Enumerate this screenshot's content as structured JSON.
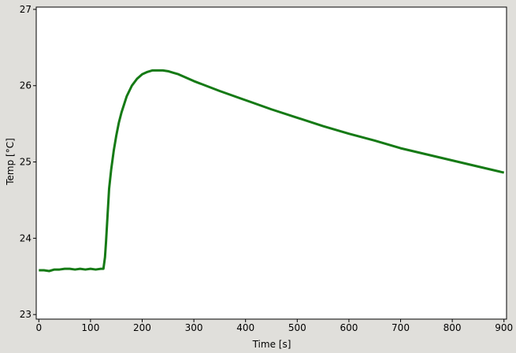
{
  "chart_data": {
    "type": "line",
    "xlabel": "Time [s]",
    "ylabel": "Temp [°C]",
    "color": "#157a15",
    "x": [
      0,
      10,
      20,
      30,
      40,
      50,
      60,
      70,
      80,
      90,
      100,
      110,
      120,
      125,
      128,
      130,
      133,
      136,
      140,
      145,
      150,
      155,
      160,
      170,
      180,
      190,
      200,
      210,
      220,
      230,
      240,
      250,
      260,
      270,
      280,
      290,
      300,
      350,
      400,
      450,
      500,
      550,
      600,
      650,
      700,
      750,
      800,
      850,
      900
    ],
    "values": [
      23.58,
      23.58,
      23.57,
      23.59,
      23.59,
      23.6,
      23.6,
      23.59,
      23.6,
      23.59,
      23.6,
      23.59,
      23.6,
      23.6,
      23.75,
      23.95,
      24.3,
      24.65,
      24.9,
      25.15,
      25.35,
      25.52,
      25.65,
      25.86,
      26.0,
      26.09,
      26.15,
      26.18,
      26.2,
      26.2,
      26.2,
      26.19,
      26.17,
      26.15,
      26.12,
      26.09,
      26.06,
      25.93,
      25.81,
      25.69,
      25.58,
      25.47,
      25.37,
      25.28,
      25.18,
      25.1,
      25.02,
      24.94,
      24.86
    ],
    "xlim": [
      -5,
      905
    ],
    "ylim": [
      22.94,
      27.03
    ],
    "xticks": [
      0,
      100,
      200,
      300,
      400,
      500,
      600,
      700,
      800,
      900
    ],
    "yticks": [
      23,
      24,
      25,
      26,
      27
    ]
  }
}
